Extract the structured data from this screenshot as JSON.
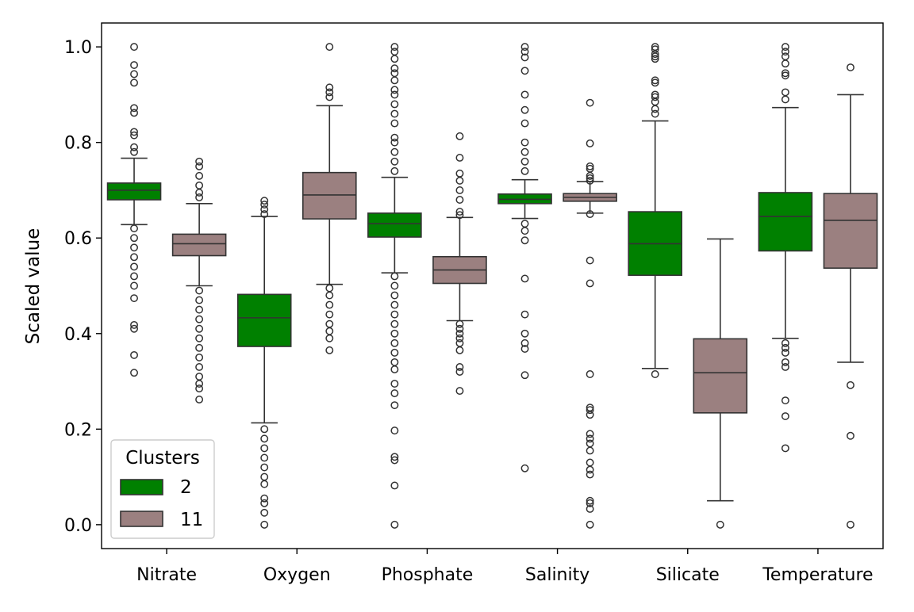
{
  "chart_data": {
    "type": "boxplot",
    "title": "",
    "xlabel": "",
    "ylabel": "Scaled value",
    "ylim": [
      -0.05,
      1.05
    ],
    "yticks": [
      0.0,
      0.2,
      0.4,
      0.6,
      0.8,
      1.0
    ],
    "ytick_labels": [
      "0.0",
      "0.2",
      "0.4",
      "0.6",
      "0.8",
      "1.0"
    ],
    "categories": [
      "Nitrate",
      "Oxygen",
      "Phosphate",
      "Salinity",
      "Silicate",
      "Temperature"
    ],
    "legend": {
      "title": "Clusters",
      "position": "lower-left",
      "entries": [
        {
          "label": "2",
          "color": "#008000"
        },
        {
          "label": "11",
          "color": "#9b8080"
        }
      ]
    },
    "series": [
      {
        "name": "2",
        "color": "#008000",
        "boxes": [
          {
            "q1": 0.68,
            "median": 0.7,
            "q3": 0.715,
            "whislo": 0.628,
            "whishi": 0.767,
            "fliers": [
              1.0,
              0.962,
              0.943,
              0.925,
              0.872,
              0.862,
              0.822,
              0.815,
              0.79,
              0.78,
              0.62,
              0.6,
              0.58,
              0.56,
              0.54,
              0.52,
              0.5,
              0.474,
              0.418,
              0.41,
              0.355,
              0.318
            ]
          },
          {
            "q1": 0.373,
            "median": 0.433,
            "q3": 0.482,
            "whislo": 0.213,
            "whishi": 0.645,
            "fliers": [
              0.678,
              0.67,
              0.66,
              0.65,
              0.2,
              0.18,
              0.16,
              0.14,
              0.12,
              0.1,
              0.085,
              0.055,
              0.045,
              0.025,
              0.0
            ]
          },
          {
            "q1": 0.602,
            "median": 0.63,
            "q3": 0.652,
            "whislo": 0.527,
            "whishi": 0.727,
            "fliers": [
              1.0,
              0.99,
              0.975,
              0.955,
              0.945,
              0.93,
              0.91,
              0.9,
              0.88,
              0.86,
              0.84,
              0.81,
              0.8,
              0.78,
              0.76,
              0.74,
              0.52,
              0.5,
              0.48,
              0.46,
              0.44,
              0.42,
              0.4,
              0.38,
              0.36,
              0.34,
              0.325,
              0.295,
              0.275,
              0.25,
              0.197,
              0.142,
              0.135,
              0.082,
              0.0
            ]
          },
          {
            "q1": 0.672,
            "median": 0.681,
            "q3": 0.692,
            "whislo": 0.641,
            "whishi": 0.722,
            "fliers": [
              1.0,
              0.99,
              0.978,
              0.95,
              0.9,
              0.868,
              0.84,
              0.8,
              0.78,
              0.76,
              0.74,
              0.63,
              0.615,
              0.595,
              0.515,
              0.44,
              0.4,
              0.38,
              0.368,
              0.313,
              0.118
            ]
          },
          {
            "q1": 0.522,
            "median": 0.588,
            "q3": 0.655,
            "whislo": 0.327,
            "whishi": 0.845,
            "fliers": [
              1.0,
              0.995,
              0.985,
              0.98,
              0.975,
              0.93,
              0.925,
              0.9,
              0.895,
              0.885,
              0.87,
              0.86,
              0.315
            ]
          },
          {
            "q1": 0.573,
            "median": 0.645,
            "q3": 0.695,
            "whislo": 0.39,
            "whishi": 0.873,
            "fliers": [
              1.0,
              0.99,
              0.98,
              0.965,
              0.945,
              0.94,
              0.905,
              0.89,
              0.38,
              0.37,
              0.36,
              0.34,
              0.33,
              0.26,
              0.227,
              0.16
            ]
          }
        ]
      },
      {
        "name": "11",
        "color": "#9b8080",
        "boxes": [
          {
            "q1": 0.563,
            "median": 0.588,
            "q3": 0.608,
            "whislo": 0.5,
            "whishi": 0.672,
            "fliers": [
              0.76,
              0.75,
              0.73,
              0.71,
              0.695,
              0.685,
              0.49,
              0.47,
              0.45,
              0.43,
              0.41,
              0.39,
              0.37,
              0.35,
              0.33,
              0.31,
              0.295,
              0.285,
              0.262
            ]
          },
          {
            "q1": 0.64,
            "median": 0.69,
            "q3": 0.737,
            "whislo": 0.503,
            "whishi": 0.877,
            "fliers": [
              1.0,
              0.915,
              0.905,
              0.895,
              0.495,
              0.48,
              0.46,
              0.44,
              0.42,
              0.405,
              0.39,
              0.365
            ]
          },
          {
            "q1": 0.505,
            "median": 0.533,
            "q3": 0.561,
            "whislo": 0.427,
            "whishi": 0.643,
            "fliers": [
              0.813,
              0.768,
              0.735,
              0.72,
              0.7,
              0.68,
              0.655,
              0.648,
              0.42,
              0.41,
              0.4,
              0.39,
              0.38,
              0.365,
              0.33,
              0.32,
              0.28
            ]
          },
          {
            "q1": 0.677,
            "median": 0.685,
            "q3": 0.693,
            "whislo": 0.652,
            "whishi": 0.718,
            "fliers": [
              0.883,
              0.798,
              0.75,
              0.745,
              0.73,
              0.725,
              0.72,
              0.65,
              0.553,
              0.505,
              0.315,
              0.245,
              0.24,
              0.23,
              0.19,
              0.18,
              0.17,
              0.155,
              0.13,
              0.115,
              0.105,
              0.05,
              0.045,
              0.033,
              0.0
            ]
          },
          {
            "q1": 0.234,
            "median": 0.318,
            "q3": 0.389,
            "whislo": 0.05,
            "whishi": 0.598,
            "fliers": [
              0.0
            ]
          },
          {
            "q1": 0.537,
            "median": 0.637,
            "q3": 0.693,
            "whislo": 0.34,
            "whishi": 0.9,
            "fliers": [
              0.957,
              0.292,
              0.186,
              0.0
            ]
          }
        ]
      }
    ]
  }
}
